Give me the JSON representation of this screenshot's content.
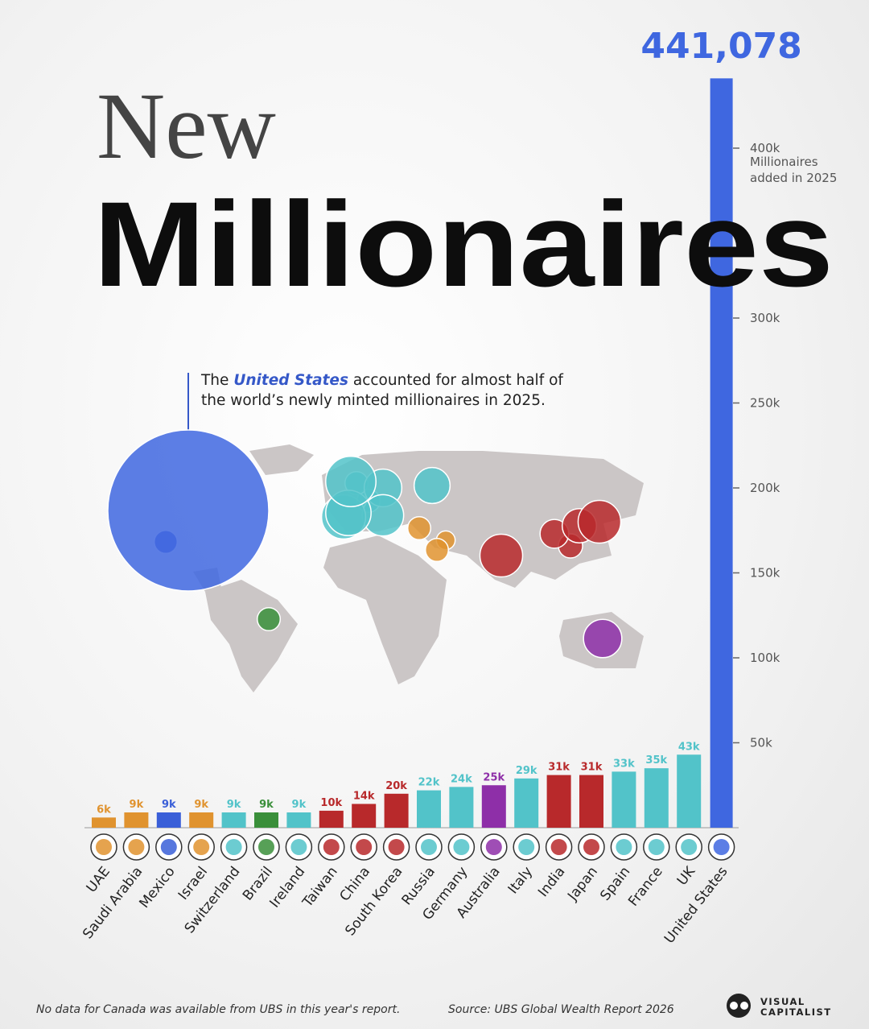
{
  "chart_data": {
    "type": "bar",
    "title_lines": [
      "New",
      "Millionaires"
    ],
    "annotation": {
      "before": "The",
      "highlight": "United States",
      "after": "accounted for almost half of the world’s newly minted millionaires in 2025."
    },
    "y_axis_label": "Millionaires added in 2025",
    "categories": [
      "UAE",
      "Saudi Arabia",
      "Mexico",
      "Israel",
      "Switzerland",
      "Brazil",
      "Ireland",
      "Taiwan",
      "China",
      "South Korea",
      "Russia",
      "Germany",
      "Australia",
      "Italy",
      "India",
      "Japan",
      "Spain",
      "France",
      "UK",
      "United States"
    ],
    "values": [
      6000,
      9000,
      9000,
      9000,
      9000,
      9000,
      9000,
      10000,
      14000,
      20000,
      22000,
      24000,
      25000,
      29000,
      31000,
      31000,
      33000,
      35000,
      43000,
      441078
    ],
    "value_labels": [
      "6k",
      "9k",
      "9k",
      "9k",
      "9k",
      "9k",
      "9k",
      "10k",
      "14k",
      "20k",
      "22k",
      "24k",
      "25k",
      "29k",
      "31k",
      "31k",
      "33k",
      "35k",
      "43k",
      "441,078"
    ],
    "colors": [
      "#e0932f",
      "#e0932f",
      "#3a5fd8",
      "#e0932f",
      "#52c3c9",
      "#3a8f3a",
      "#52c3c9",
      "#b8292b",
      "#b8292b",
      "#b8292b",
      "#52c3c9",
      "#52c3c9",
      "#8e2fa8",
      "#52c3c9",
      "#b8292b",
      "#b8292b",
      "#52c3c9",
      "#52c3c9",
      "#52c3c9",
      "#3f67e0"
    ],
    "ylim": [
      0,
      450000
    ],
    "yticks": [
      {
        "value": 50000,
        "label": "50k"
      },
      {
        "value": 100000,
        "label": "100k"
      },
      {
        "value": 150000,
        "label": "150k"
      },
      {
        "value": 200000,
        "label": "200k"
      },
      {
        "value": 250000,
        "label": "250k"
      },
      {
        "value": 300000,
        "label": "300k"
      },
      {
        "value": 400000,
        "label": "400k"
      }
    ],
    "note": "No data for Canada was available from UBS in this year's report.",
    "source": "Source: UBS Global Wealth Report 2026",
    "brand_lines": [
      "VISUAL",
      "CAPITALIST"
    ]
  }
}
